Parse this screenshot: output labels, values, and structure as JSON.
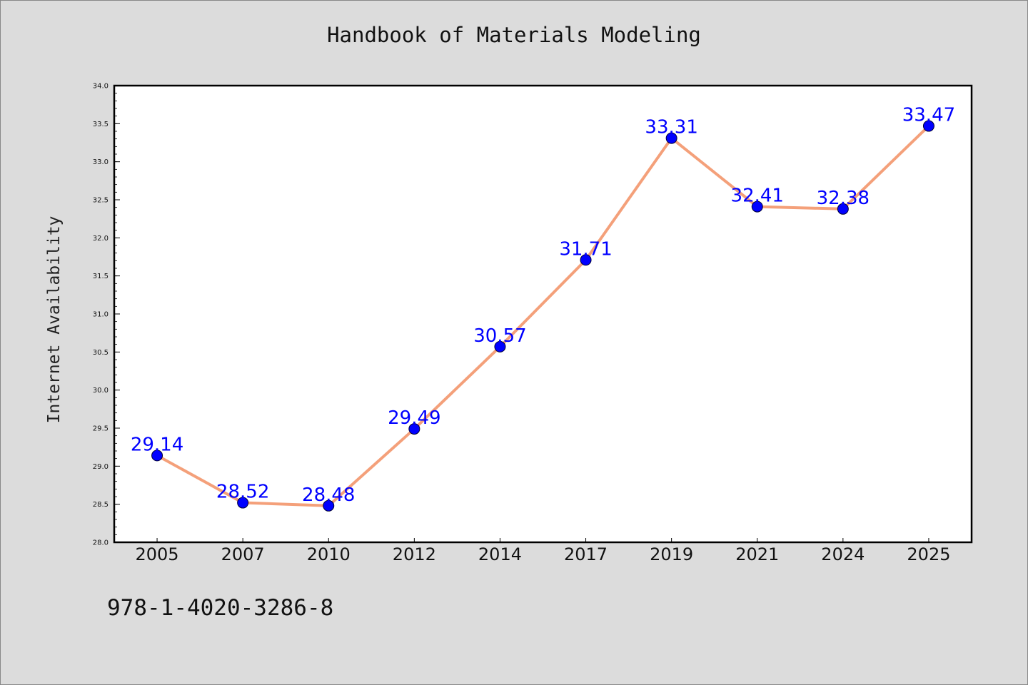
{
  "chart_data": {
    "type": "line",
    "title": "Handbook of Materials Modeling",
    "xlabel": "",
    "ylabel": "Internet Availability",
    "categories": [
      "2005",
      "2007",
      "2010",
      "2012",
      "2014",
      "2017",
      "2019",
      "2021",
      "2024",
      "2025"
    ],
    "series": [
      {
        "values": [
          29.14,
          28.52,
          28.48,
          29.49,
          30.57,
          31.71,
          33.31,
          32.41,
          32.38,
          33.47
        ],
        "data_labels": [
          "29.14",
          "28.52",
          "28.48",
          "29.49",
          "30.57",
          "31.71",
          "33.31",
          "32.41",
          "32.38",
          "33.47"
        ],
        "line_color": "#f4a07a",
        "marker_color": "#0000ff"
      }
    ],
    "ylim": [
      28.0,
      34.0
    ],
    "yticks": [
      "28.0",
      "28.5",
      "29.0",
      "29.5",
      "30.0",
      "30.5",
      "31.0",
      "31.5",
      "32.0",
      "32.5",
      "33.0",
      "33.5",
      "34.0"
    ],
    "grid": false,
    "legend": "none",
    "background_color": "#dcdcdc",
    "plot_background_color": "#ffffff",
    "label_color": "#0000ff"
  },
  "footer": {
    "isbn": "978-1-4020-3286-8"
  }
}
